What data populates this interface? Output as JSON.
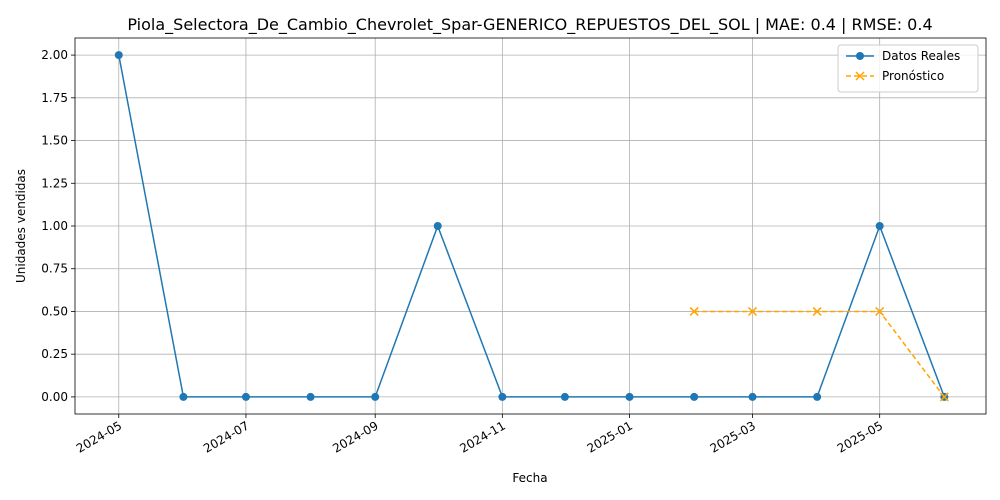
{
  "chart_data": {
    "type": "line",
    "title": "Piola_Selectora_De_Cambio_Chevrolet_Spar-GENERICO_REPUESTOS_DEL_SOL | MAE: 0.4 | RMSE: 0.4",
    "xlabel": "Fecha",
    "ylabel": "Unidades vendidas",
    "xlim": [
      "2024-04-10",
      "2025-06-21"
    ],
    "ylim": [
      -0.1,
      2.1
    ],
    "x_ticks": [
      "2024-05-01",
      "2024-07-01",
      "2024-09-01",
      "2024-11-01",
      "2025-01-01",
      "2025-03-01",
      "2025-05-01"
    ],
    "x_tick_labels": [
      "2024-05",
      "2024-07",
      "2024-09",
      "2024-11",
      "2025-01",
      "2025-03",
      "2025-05"
    ],
    "y_ticks": [
      0.0,
      0.25,
      0.5,
      0.75,
      1.0,
      1.25,
      1.5,
      1.75,
      2.0
    ],
    "y_tick_labels": [
      "0.00",
      "0.25",
      "0.50",
      "0.75",
      "1.00",
      "1.25",
      "1.50",
      "1.75",
      "2.00"
    ],
    "grid": true,
    "legend_position": "top-right",
    "series": [
      {
        "name": "Datos Reales",
        "color": "#1f77b4",
        "line_style": "solid",
        "marker": "circle",
        "x": [
          "2024-05-01",
          "2024-06-01",
          "2024-07-01",
          "2024-08-01",
          "2024-09-01",
          "2024-10-01",
          "2024-11-01",
          "2024-12-01",
          "2025-01-01",
          "2025-02-01",
          "2025-03-01",
          "2025-04-01",
          "2025-05-01",
          "2025-06-01"
        ],
        "y": [
          2,
          0,
          0,
          0,
          0,
          1,
          0,
          0,
          0,
          0,
          0,
          0,
          1,
          0
        ]
      },
      {
        "name": "Pronóstico",
        "color": "#ffa500",
        "line_style": "dashed",
        "marker": "x",
        "x": [
          "2025-02-01",
          "2025-03-01",
          "2025-04-01",
          "2025-05-01",
          "2025-06-01"
        ],
        "y": [
          0.5,
          0.5,
          0.5,
          0.5,
          0
        ]
      }
    ]
  }
}
